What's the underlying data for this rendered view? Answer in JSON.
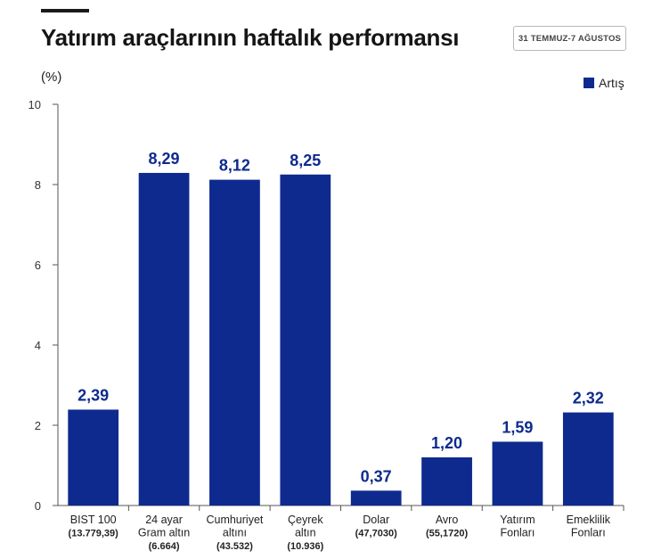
{
  "header": {
    "title": "Yatırım araçlarının haftalık performansı",
    "date_range": "31 TEMMUZ-7 AĞUSTOS",
    "unit": "(%)"
  },
  "colors": {
    "bar": "#0e2a8e",
    "value_label": "#0e2a8e",
    "axis": "#555555"
  },
  "chart_data": {
    "type": "bar",
    "title": "Yatırım araçlarının haftalık performansı",
    "ylabel": "(%)",
    "ylim": [
      0,
      10
    ],
    "yticks": [
      0,
      2,
      4,
      6,
      8,
      10
    ],
    "legend": {
      "position": "top-right",
      "entries": [
        "Artış"
      ]
    },
    "grid": false,
    "categories": [
      [
        "BIST 100",
        "(13.779,39)"
      ],
      [
        "24 ayar",
        "Gram altın",
        "(6.664)"
      ],
      [
        "Cumhuriyet",
        "altını",
        "(43.532)"
      ],
      [
        "Çeyrek",
        "altın",
        "(10.936)"
      ],
      [
        "Dolar",
        "(47,7030)"
      ],
      [
        "Avro",
        "(55,1720)"
      ],
      [
        "Yatırım",
        "Fonları"
      ],
      [
        "Emeklilik",
        "Fonları"
      ]
    ],
    "series": [
      {
        "name": "Artış",
        "values": [
          2.39,
          8.29,
          8.12,
          8.25,
          0.37,
          1.2,
          1.59,
          2.32
        ],
        "labels": [
          "2,39",
          "8,29",
          "8,12",
          "8,25",
          "0,37",
          "1,20",
          "1,59",
          "2,32"
        ]
      }
    ]
  }
}
